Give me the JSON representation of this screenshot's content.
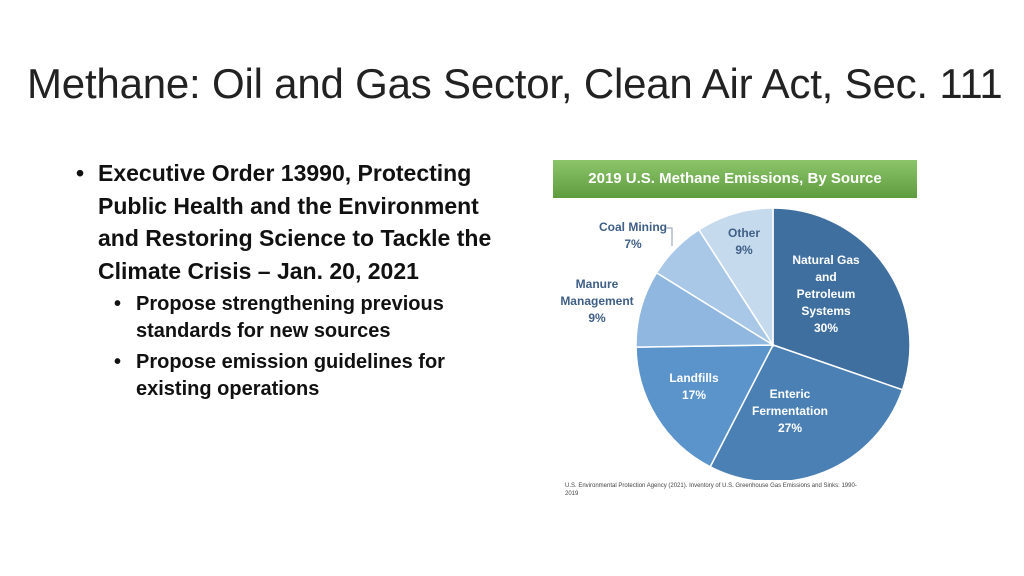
{
  "slide": {
    "title": "Methane: Oil and Gas Sector, Clean Air Act, Sec. 111",
    "bullets": [
      {
        "text": "Executive Order 13990, Protecting Public Health and the Environment and Restoring Science to Tackle the Climate Crisis – Jan. 20, 2021",
        "subbullets": [
          "Propose strengthening previous standards for new sources",
          "Propose emission guidelines for existing operations"
        ]
      }
    ],
    "bullet_glyph": "•"
  },
  "chart_data": {
    "type": "pie",
    "title": "2019 U.S. Methane Emissions, By Source",
    "slices": [
      {
        "label": [
          "Natural Gas",
          "and",
          "Petroleum",
          "Systems"
        ],
        "value": 30,
        "value_label": "30%",
        "color": "#3f6f9f"
      },
      {
        "label": [
          "Enteric",
          "Fermentation"
        ],
        "value": 27,
        "value_label": "27%",
        "color": "#4b80b4"
      },
      {
        "label": [
          "Landfills"
        ],
        "value": 17,
        "value_label": "17%",
        "color": "#5b94cb"
      },
      {
        "label": [
          "Manure",
          "Management"
        ],
        "value": 9,
        "value_label": "9%",
        "color": "#8fb7e0"
      },
      {
        "label": [
          "Coal Mining"
        ],
        "value": 7,
        "value_label": "7%",
        "color": "#a9c8e8"
      },
      {
        "label": [
          "Other"
        ],
        "value": 9,
        "value_label": "9%",
        "color": "#c6daee"
      }
    ],
    "source": "U.S. Environmental Protection Agency (2021). Inventory of U.S. Greenhouse Gas Emissions and Sinks: 1990-2019"
  }
}
